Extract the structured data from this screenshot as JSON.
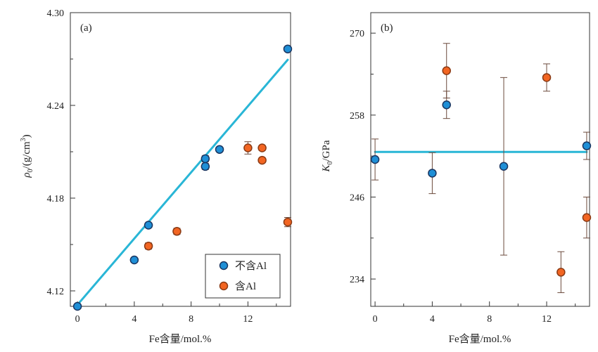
{
  "chart_data": [
    {
      "type": "scatter",
      "panel_label": "(a)",
      "xlabel": "Fe含量/mol.%",
      "ylabel": "ρ",
      "ylabel_sub": "0",
      "ylabel_unit": "/(g/cm",
      "ylabel_sup": "3",
      "ylabel_close": ")",
      "xlim": [
        -0.5,
        15
      ],
      "ylim": [
        4.11,
        4.3
      ],
      "xticks": [
        0,
        4,
        8,
        12
      ],
      "xticks_minor": [
        2,
        6,
        10,
        14
      ],
      "yticks": [
        4.12,
        4.18,
        4.24,
        4.3
      ],
      "yticks_minor": [
        4.15,
        4.21,
        4.27
      ],
      "xtick_labels": [
        "0",
        "4",
        "8",
        "12"
      ],
      "ytick_labels": [
        "4.12",
        "4.18",
        "4.24",
        "4.30"
      ],
      "legend_position": "bottom-right",
      "series": [
        {
          "name": "不含Al",
          "color": "#1f8fd6",
          "points": [
            {
              "x": 0,
              "y": 4.11,
              "err": 0.001
            },
            {
              "x": 4,
              "y": 4.14,
              "err": 0.001
            },
            {
              "x": 5,
              "y": 4.1625,
              "err": 0.0015
            },
            {
              "x": 9,
              "y": 4.2005,
              "err": 0.002
            },
            {
              "x": 9,
              "y": 4.2055,
              "err": 0.002
            },
            {
              "x": 10,
              "y": 4.2115,
              "err": 0.0015
            },
            {
              "x": 14.8,
              "y": 4.2765,
              "err": 0.0015
            }
          ]
        },
        {
          "name": "含Al",
          "color": "#f26522",
          "points": [
            {
              "x": 5,
              "y": 4.149,
              "err": 0.002
            },
            {
              "x": 7,
              "y": 4.1585,
              "err": 0.002
            },
            {
              "x": 12,
              "y": 4.2125,
              "err": 0.004
            },
            {
              "x": 13,
              "y": 4.2125,
              "err": 0.0015
            },
            {
              "x": 13,
              "y": 4.2045,
              "err": 0.0015
            },
            {
              "x": 14.8,
              "y": 4.1645,
              "err": 0.003
            }
          ]
        }
      ],
      "fit_line": {
        "color": "#29b6d6",
        "x": [
          0,
          14.8
        ],
        "y": [
          4.111,
          4.2695
        ]
      }
    },
    {
      "type": "scatter",
      "panel_label": "(b)",
      "xlabel": "Fe含量/mol.%",
      "ylabel": "K",
      "ylabel_sub": "0",
      "ylabel_unit": "/GPa",
      "xlim": [
        -0.3,
        15
      ],
      "ylim": [
        230,
        273
      ],
      "xticks": [
        0,
        4,
        8,
        12
      ],
      "xticks_minor": [
        2,
        6,
        10,
        14
      ],
      "yticks": [
        234,
        246,
        258,
        270
      ],
      "yticks_minor": [
        240,
        252,
        264
      ],
      "xtick_labels": [
        "0",
        "4",
        "8",
        "12"
      ],
      "ytick_labels": [
        "234",
        "246",
        "258",
        "270"
      ],
      "series": [
        {
          "name": "不含Al",
          "color": "#1f8fd6",
          "points": [
            {
              "x": 0,
              "y": 251.5,
              "err": 3
            },
            {
              "x": 4,
              "y": 249.5,
              "err": 3
            },
            {
              "x": 5,
              "y": 259.5,
              "err": 2
            },
            {
              "x": 9,
              "y": 250.5,
              "err": 13
            },
            {
              "x": 14.8,
              "y": 253.5,
              "err": 2
            }
          ]
        },
        {
          "name": "含Al",
          "color": "#f26522",
          "points": [
            {
              "x": 5,
              "y": 264.5,
              "err": 4
            },
            {
              "x": 12,
              "y": 263.5,
              "err": 2
            },
            {
              "x": 13,
              "y": 235.0,
              "err": 3
            },
            {
              "x": 14.8,
              "y": 243.0,
              "err": 3
            }
          ]
        }
      ],
      "fit_line": {
        "color": "#29b6d6",
        "x": [
          0,
          14.8
        ],
        "y": [
          252.6,
          252.6
        ]
      }
    }
  ]
}
